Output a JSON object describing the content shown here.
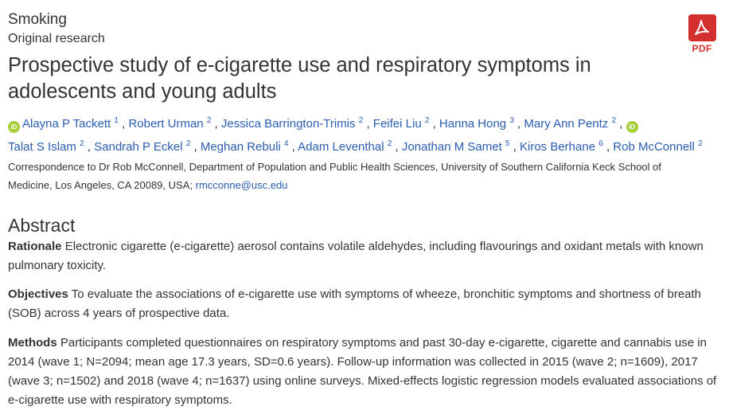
{
  "header": {
    "category": "Smoking",
    "subcategory": "Original research",
    "title": "Prospective study of e-cigarette use and respiratory symptoms in adolescents and young adults",
    "pdf_label": "PDF"
  },
  "authors": [
    {
      "name": "Alayna P Tackett",
      "aff": "1",
      "orcid": true
    },
    {
      "name": "Robert Urman",
      "aff": "2",
      "orcid": false
    },
    {
      "name": "Jessica Barrington-Trimis",
      "aff": "2",
      "orcid": false
    },
    {
      "name": "Feifei Liu",
      "aff": "2",
      "orcid": false
    },
    {
      "name": "Hanna Hong",
      "aff": "3",
      "orcid": false
    },
    {
      "name": "Mary Ann Pentz",
      "aff": "2",
      "orcid": false
    },
    {
      "name": "Talat S Islam",
      "aff": "2",
      "orcid": true
    },
    {
      "name": "Sandrah P Eckel",
      "aff": "2",
      "orcid": false
    },
    {
      "name": "Meghan Rebuli",
      "aff": "4",
      "orcid": false
    },
    {
      "name": "Adam Leventhal",
      "aff": "2",
      "orcid": false
    },
    {
      "name": "Jonathan M Samet",
      "aff": "5",
      "orcid": false
    },
    {
      "name": "Kiros Berhane",
      "aff": "6",
      "orcid": false
    },
    {
      "name": "Rob McConnell",
      "aff": "2",
      "orcid": false
    }
  ],
  "correspondence": {
    "text": "Correspondence to Dr Rob McConnell, Department of Population and Public Health Sciences, University of Southern California Keck School of Medicine, Los Angeles, CA 20089, USA;",
    "email": "rmcconne@usc.edu"
  },
  "abstract": {
    "heading": "Abstract",
    "sections": [
      {
        "label": "Rationale",
        "text": "Electronic cigarette (e-cigarette) aerosol contains volatile aldehydes, including flavourings and oxidant metals with known pulmonary toxicity."
      },
      {
        "label": "Objectives",
        "text": "To evaluate the associations of e-cigarette use with symptoms of wheeze, bronchitic symptoms and shortness of breath (SOB) across 4 years of prospective data."
      },
      {
        "label": "Methods",
        "text": "Participants completed questionnaires on respiratory symptoms and past 30-day e-cigarette, cigarette and cannabis use in 2014 (wave 1; N=2094; mean age 17.3 years, SD=0.6 years). Follow-up information was collected in 2015 (wave 2; n=1609), 2017 (wave 3; n=1502) and 2018 (wave 4; n=1637) using online surveys. Mixed-effects logistic regression models evaluated associations of e-cigarette use with respiratory symptoms."
      }
    ]
  },
  "colors": {
    "link": "#2a5db0",
    "pdf": "#d32f2f",
    "orcid": "#a6ce39"
  },
  "icons": {
    "pdf": "pdf-icon",
    "orcid": "orcid-icon"
  }
}
